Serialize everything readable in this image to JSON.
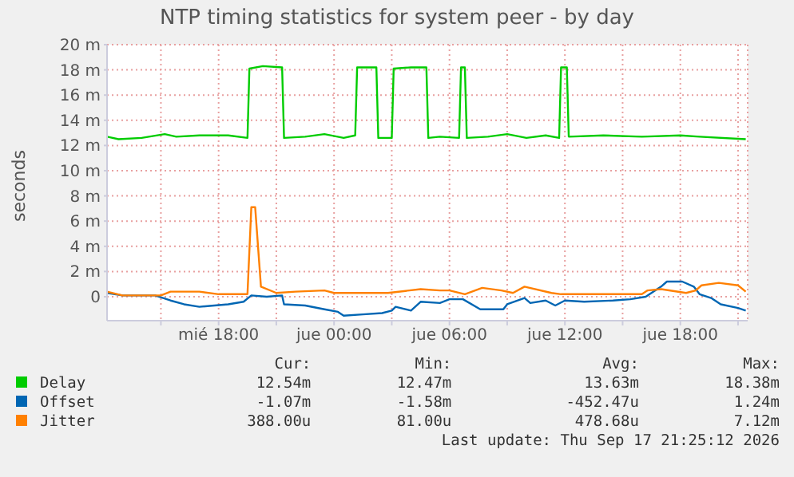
{
  "chart_data": {
    "type": "line",
    "title": "NTP timing statistics for system peer - by day",
    "ylabel": "seconds",
    "xlim": [
      "2026-09-16T12:12",
      "2026-09-17T21:30"
    ],
    "xticks": [
      {
        "value": "2026-09-16T15:00",
        "label": null
      },
      {
        "value": "2026-09-16T18:00",
        "label": "mié 18:00"
      },
      {
        "value": "2026-09-16T21:00",
        "label": null
      },
      {
        "value": "2026-09-17T00:00",
        "label": "jue 00:00"
      },
      {
        "value": "2026-09-17T03:00",
        "label": null
      },
      {
        "value": "2026-09-17T06:00",
        "label": "jue 06:00"
      },
      {
        "value": "2026-09-17T09:00",
        "label": null
      },
      {
        "value": "2026-09-17T12:00",
        "label": "jue 12:00"
      },
      {
        "value": "2026-09-17T15:00",
        "label": null
      },
      {
        "value": "2026-09-17T18:00",
        "label": "jue 18:00"
      },
      {
        "value": "2026-09-17T21:00",
        "label": null
      }
    ],
    "ylim": [
      -1.9,
      20
    ],
    "yticks": [
      {
        "value": 0,
        "label": "0"
      },
      {
        "value": 2,
        "label": "2 m"
      },
      {
        "value": 4,
        "label": "4 m"
      },
      {
        "value": 6,
        "label": "6 m"
      },
      {
        "value": 8,
        "label": "8 m"
      },
      {
        "value": 10,
        "label": "10 m"
      },
      {
        "value": 12,
        "label": "12 m"
      },
      {
        "value": 14,
        "label": "14 m"
      },
      {
        "value": 16,
        "label": "16 m"
      },
      {
        "value": 18,
        "label": "18 m"
      },
      {
        "value": 20,
        "label": "20 m"
      }
    ],
    "grid": true,
    "legend": "bottom",
    "marker": "none",
    "line_style": "solid",
    "series": [
      {
        "name": "Delay",
        "color": "#00cc00",
        "x": [
          "2026-09-16T12:12",
          "2026-09-16T12:48",
          "2026-09-16T14:00",
          "2026-09-16T15:12",
          "2026-09-16T15:48",
          "2026-09-16T17:00",
          "2026-09-16T18:30",
          "2026-09-16T19:30",
          "2026-09-16T19:36",
          "2026-09-16T20:18",
          "2026-09-16T21:18",
          "2026-09-16T21:24",
          "2026-09-16T22:30",
          "2026-09-16T23:30",
          "2026-09-17T00:30",
          "2026-09-17T01:06",
          "2026-09-17T01:12",
          "2026-09-17T02:12",
          "2026-09-17T02:18",
          "2026-09-17T03:00",
          "2026-09-17T03:06",
          "2026-09-17T04:00",
          "2026-09-17T04:48",
          "2026-09-17T04:54",
          "2026-09-17T05:30",
          "2026-09-17T06:30",
          "2026-09-17T06:36",
          "2026-09-17T06:48",
          "2026-09-17T06:54",
          "2026-09-17T08:00",
          "2026-09-17T09:00",
          "2026-09-17T10:00",
          "2026-09-17T11:00",
          "2026-09-17T11:42",
          "2026-09-17T11:48",
          "2026-09-17T12:06",
          "2026-09-17T12:12",
          "2026-09-17T14:00",
          "2026-09-17T16:00",
          "2026-09-17T18:00",
          "2026-09-17T19:00",
          "2026-09-17T21:24"
        ],
        "values": [
          12.7,
          12.5,
          12.6,
          12.9,
          12.7,
          12.8,
          12.8,
          12.6,
          18.1,
          18.3,
          18.2,
          12.6,
          12.7,
          12.9,
          12.6,
          12.8,
          18.2,
          18.2,
          12.6,
          12.6,
          18.1,
          18.2,
          18.2,
          12.6,
          12.7,
          12.6,
          18.2,
          18.2,
          12.6,
          12.7,
          12.9,
          12.6,
          12.8,
          12.6,
          18.2,
          18.2,
          12.7,
          12.8,
          12.7,
          12.8,
          12.7,
          12.5
        ]
      },
      {
        "name": "Offset",
        "color": "#0066b3",
        "x": [
          "2026-09-16T12:12",
          "2026-09-16T13:00",
          "2026-09-16T14:42",
          "2026-09-16T15:30",
          "2026-09-16T16:12",
          "2026-09-16T17:00",
          "2026-09-16T18:30",
          "2026-09-16T19:18",
          "2026-09-16T19:42",
          "2026-09-16T20:30",
          "2026-09-16T21:18",
          "2026-09-16T21:24",
          "2026-09-16T22:30",
          "2026-09-16T23:30",
          "2026-09-17T00:12",
          "2026-09-17T00:30",
          "2026-09-17T01:30",
          "2026-09-17T02:30",
          "2026-09-17T03:00",
          "2026-09-17T03:12",
          "2026-09-17T04:00",
          "2026-09-17T04:30",
          "2026-09-17T05:30",
          "2026-09-17T06:00",
          "2026-09-17T06:42",
          "2026-09-17T07:36",
          "2026-09-17T08:48",
          "2026-09-17T09:00",
          "2026-09-17T09:54",
          "2026-09-17T10:12",
          "2026-09-17T11:00",
          "2026-09-17T11:30",
          "2026-09-17T12:00",
          "2026-09-17T13:00",
          "2026-09-17T14:30",
          "2026-09-17T15:24",
          "2026-09-17T16:12",
          "2026-09-17T17:00",
          "2026-09-17T17:18",
          "2026-09-17T18:06",
          "2026-09-17T18:42",
          "2026-09-17T19:00",
          "2026-09-17T19:36",
          "2026-09-17T20:06",
          "2026-09-17T21:00",
          "2026-09-17T21:24"
        ],
        "values": [
          0.3,
          0.1,
          0.1,
          -0.3,
          -0.6,
          -0.8,
          -0.6,
          -0.4,
          0.1,
          0,
          0.1,
          -0.6,
          -0.7,
          -1,
          -1.2,
          -1.5,
          -1.4,
          -1.3,
          -1.1,
          -0.8,
          -1.1,
          -0.4,
          -0.5,
          -0.2,
          -0.2,
          -1,
          -1,
          -0.6,
          -0.1,
          -0.5,
          -0.3,
          -0.7,
          -0.3,
          -0.4,
          -0.3,
          -0.2,
          0,
          0.8,
          1.2,
          1.2,
          0.8,
          0.2,
          -0.1,
          -0.6,
          -0.9,
          -1.1
        ]
      },
      {
        "name": "Jitter",
        "color": "#ff8000",
        "x": [
          "2026-09-16T12:12",
          "2026-09-16T13:00",
          "2026-09-16T15:00",
          "2026-09-16T15:30",
          "2026-09-16T17:00",
          "2026-09-16T18:00",
          "2026-09-16T19:30",
          "2026-09-16T19:42",
          "2026-09-16T19:54",
          "2026-09-16T20:12",
          "2026-09-16T21:00",
          "2026-09-16T22:00",
          "2026-09-16T23:30",
          "2026-09-17T00:00",
          "2026-09-17T02:00",
          "2026-09-17T02:48",
          "2026-09-17T04:30",
          "2026-09-17T05:30",
          "2026-09-17T06:00",
          "2026-09-17T06:48",
          "2026-09-17T07:42",
          "2026-09-17T08:42",
          "2026-09-17T09:18",
          "2026-09-17T09:54",
          "2026-09-17T11:18",
          "2026-09-17T11:48",
          "2026-09-17T16:00",
          "2026-09-17T16:18",
          "2026-09-17T17:00",
          "2026-09-17T18:18",
          "2026-09-17T18:48",
          "2026-09-17T19:06",
          "2026-09-17T20:00",
          "2026-09-17T21:00",
          "2026-09-17T21:24"
        ],
        "values": [
          0.4,
          0.1,
          0.1,
          0.4,
          0.4,
          0.2,
          0.2,
          7.1,
          7.1,
          0.8,
          0.3,
          0.4,
          0.5,
          0.3,
          0.3,
          0.3,
          0.6,
          0.5,
          0.5,
          0.2,
          0.7,
          0.5,
          0.3,
          0.8,
          0.3,
          0.2,
          0.2,
          0.5,
          0.6,
          0.3,
          0.5,
          0.9,
          1.1,
          0.9,
          0.4
        ]
      }
    ],
    "annotations": [
      "Cur:",
      "Min:",
      "Avg:",
      "Max:",
      "12.54m",
      "12.47m",
      "13.63m",
      "18.38m",
      "-1.07m",
      "-1.58m",
      "-452.47u",
      "1.24m",
      "388.00u",
      "81.00u",
      "478.68u",
      "7.12m",
      "Last update: Thu Sep 17 21:25:12 2026"
    ]
  }
}
